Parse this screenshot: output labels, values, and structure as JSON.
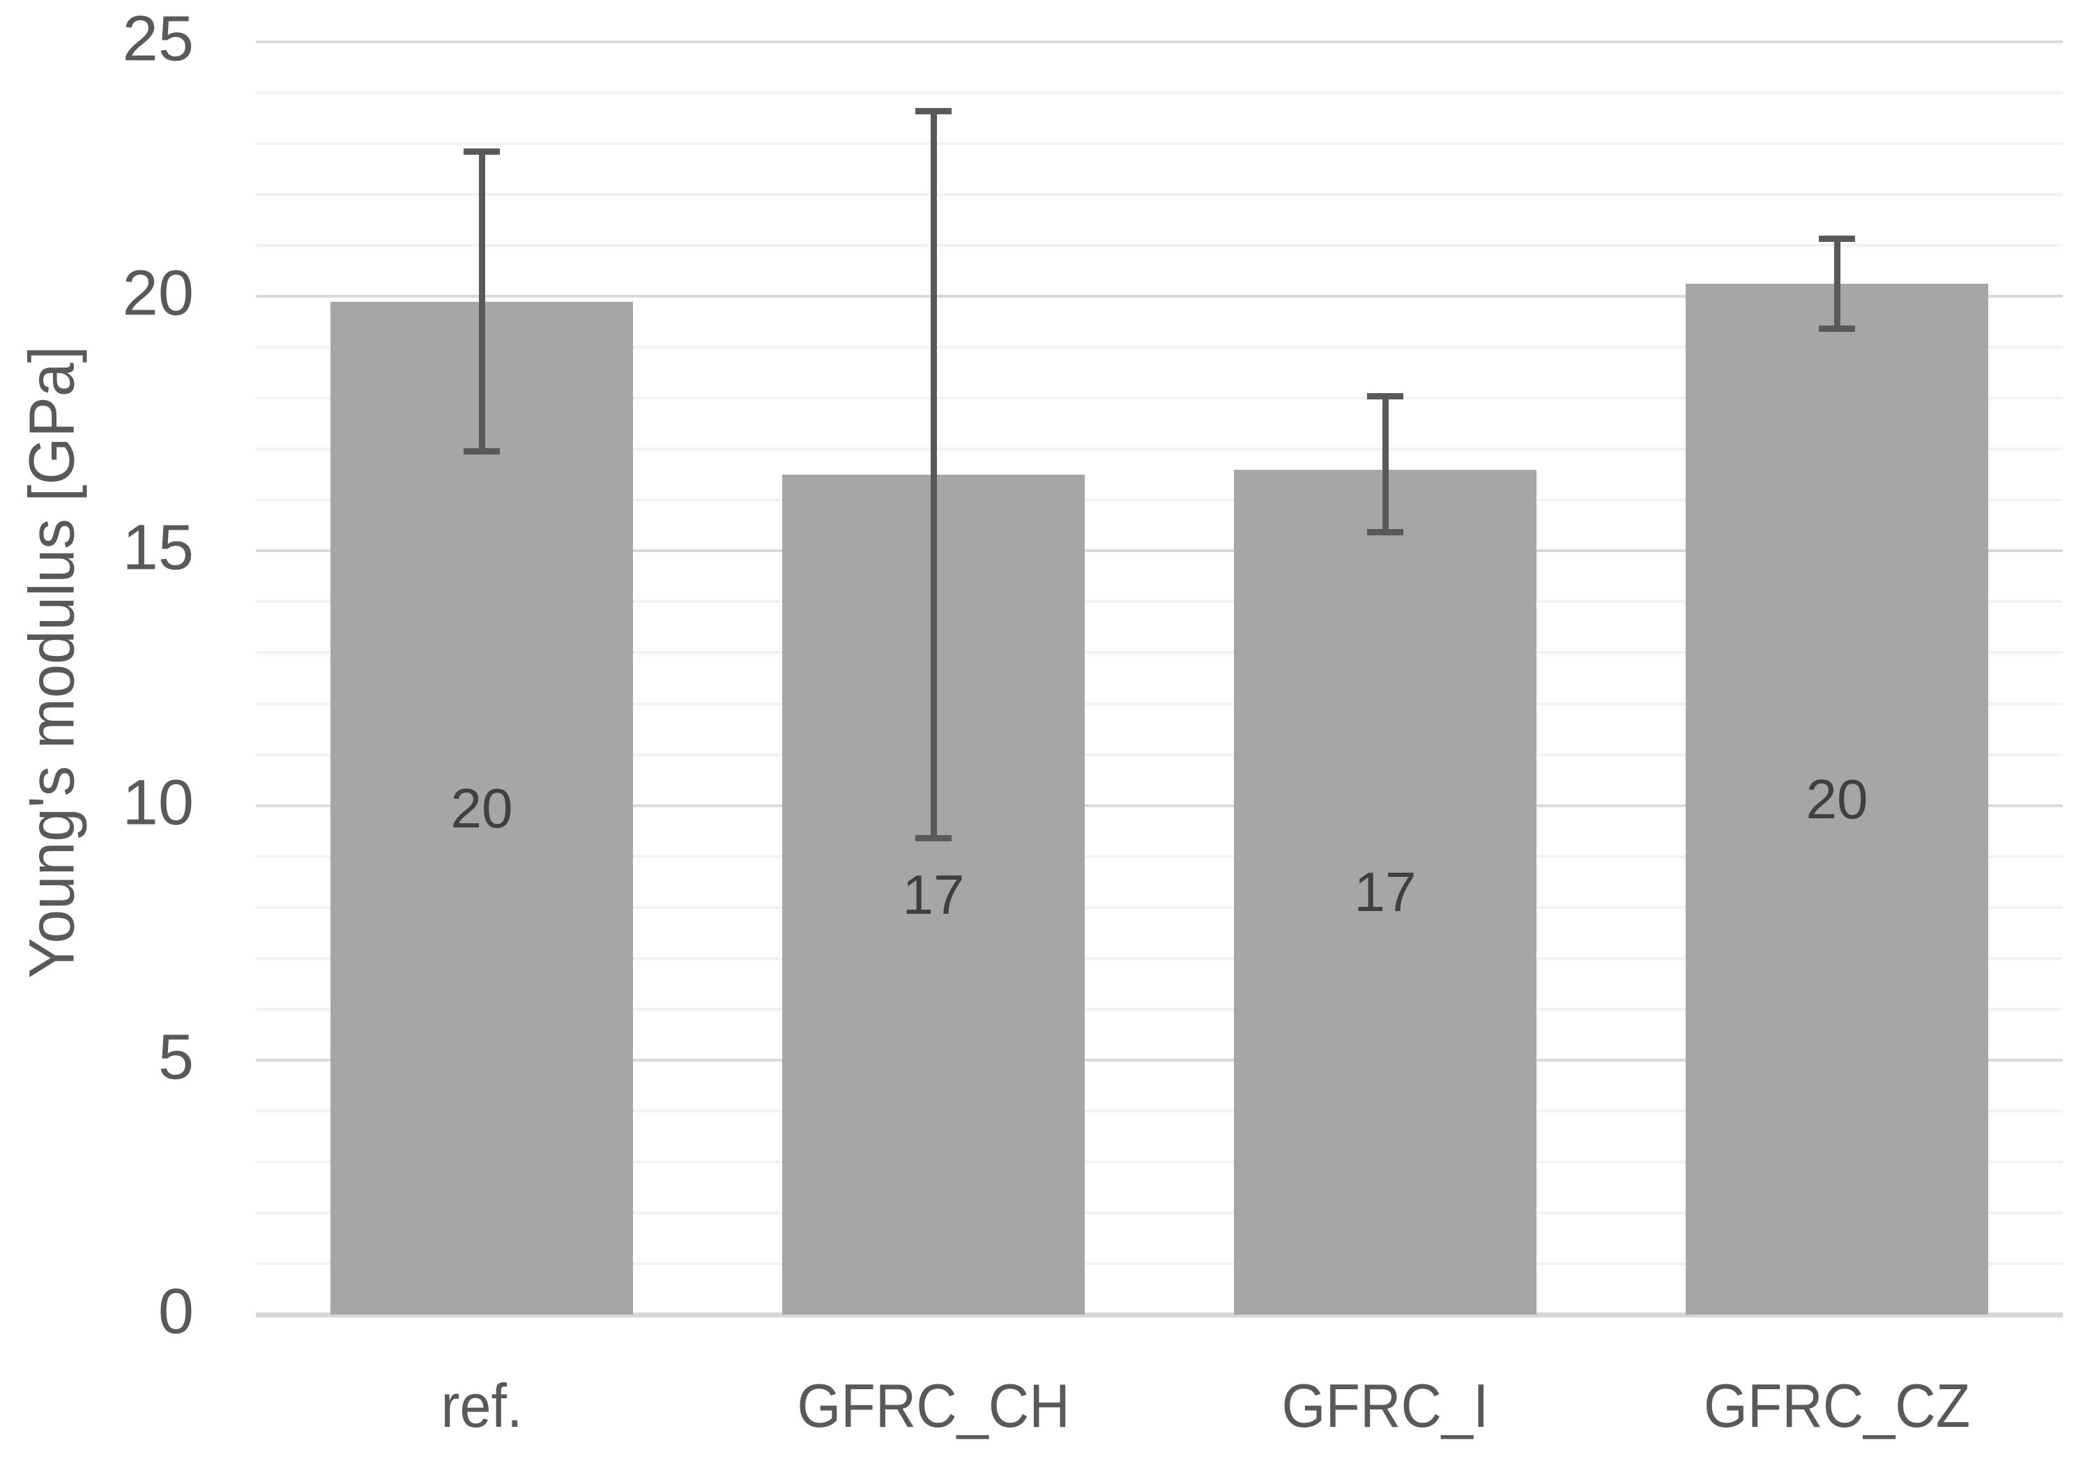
{
  "chart_data": {
    "type": "bar",
    "title": "",
    "xlabel": "",
    "ylabel": "Young's modulus [GPa]",
    "categories": [
      "ref.",
      "GFRC_CH",
      "GFRC_I",
      "GFRC_CZ"
    ],
    "values": [
      20,
      17,
      17,
      20
    ],
    "bar_labels": [
      "20",
      "17",
      "17",
      "20"
    ],
    "bar_heights_gpa": [
      19.9,
      16.5,
      16.6,
      20.25
    ],
    "error_bars_gpa": [
      {
        "low": 16.9,
        "high": 22.9
      },
      {
        "low": 9.3,
        "high": 23.7
      },
      {
        "low": 15.3,
        "high": 18.1
      },
      {
        "low": 19.3,
        "high": 21.2
      }
    ],
    "ylim": [
      0,
      25
    ],
    "y_major_step": 5,
    "y_minor_step": 1,
    "y_tick_labels": [
      "0",
      "5",
      "10",
      "15",
      "20",
      "25"
    ],
    "grid": "horizontal major+minor, no vertical gridlines",
    "legend_position": "none",
    "colors": {
      "bar_fill": "#a6a6a6",
      "error_bar": "#595959",
      "bar_label_text": "#404040",
      "axis_text": "#595959",
      "major_grid": "#d9d9d9",
      "minor_grid": "#f2f2f2",
      "baseline": "#d6d6d6",
      "background": "#ffffff"
    }
  }
}
